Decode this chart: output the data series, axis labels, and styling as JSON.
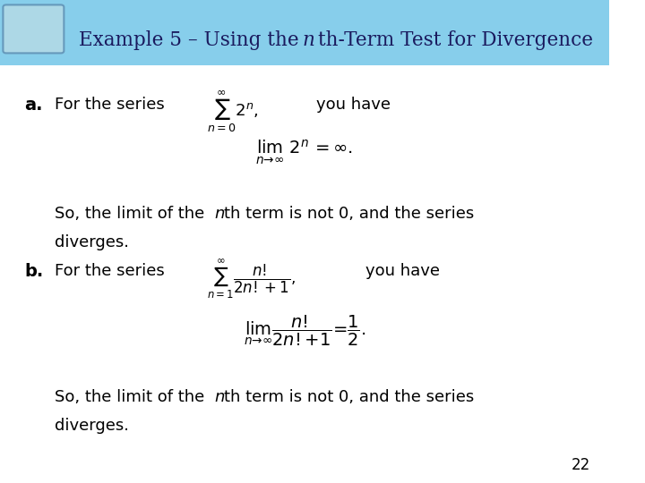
{
  "title": "Example 5 – Using the nth-Term Test for Divergence",
  "title_normal": "Example 5 – Using the ",
  "title_italic": "n",
  "title_after_italic": "th-Term Test for Divergence",
  "bg_color": "#ffffff",
  "header_color": "#87CEEB",
  "header_text_color": "#1a1a5e",
  "slide_number": "22",
  "part_a_label": "a.",
  "part_a_text1": " For the series ",
  "part_a_series": "Σ",
  "part_a_formula": "lim  2ⁿ = ∞.",
  "part_a_conclusion1": "So, the limit of the ",
  "part_a_conclusion_n": "n",
  "part_a_conclusion2": "th term is not 0, and the series",
  "part_a_conclusion3": "diverges.",
  "part_b_label": "b.",
  "part_b_text1": " For the series ",
  "part_b_conclusion1": "So, the limit of the ",
  "part_b_conclusion_n": "n",
  "part_b_conclusion2": "th term is not 0, and the series",
  "part_b_conclusion3": "diverges."
}
